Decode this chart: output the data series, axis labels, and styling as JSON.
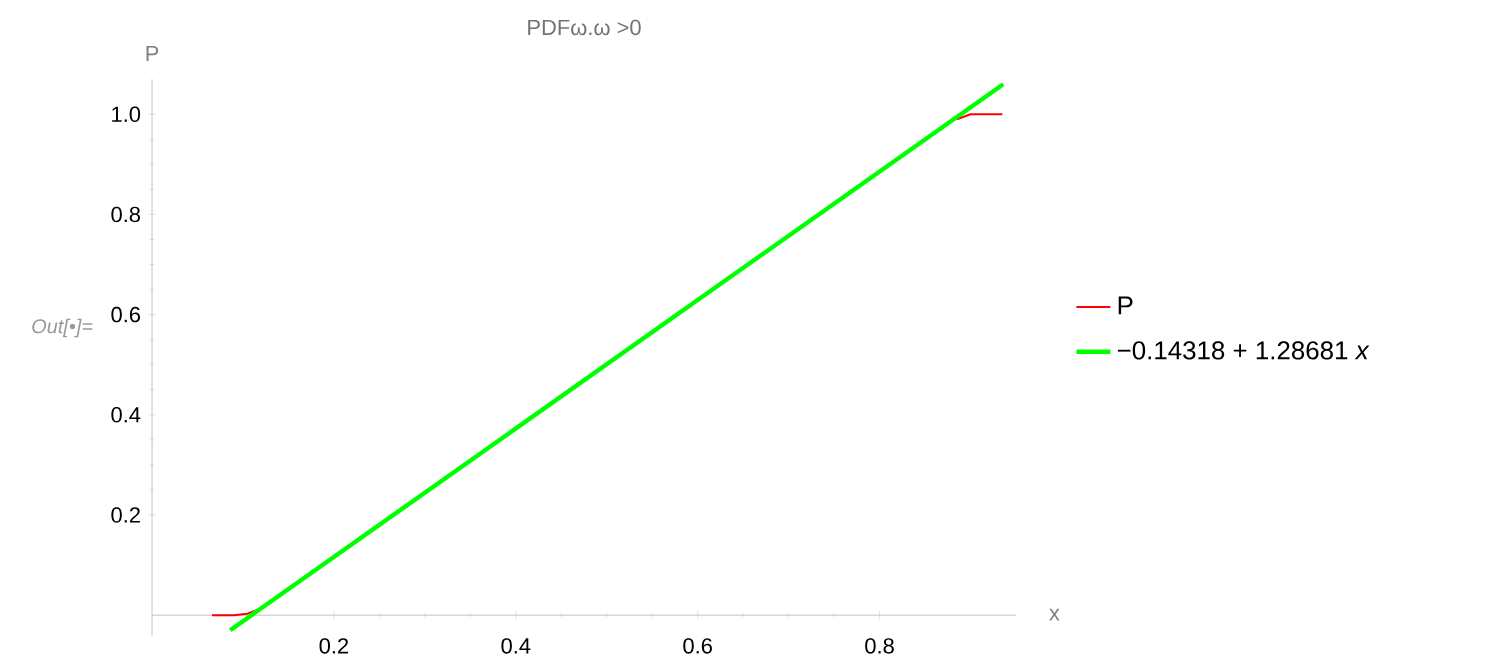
{
  "chart_data": {
    "type": "line",
    "title": "PDFω.ω >0",
    "xlabel": "x",
    "ylabel": "P",
    "annotations": [
      "Out[•]="
    ],
    "xlim": [
      0,
      0.95
    ],
    "ylim": [
      -0.04,
      1.07
    ],
    "xticks": [
      0.2,
      0.4,
      0.6,
      0.8
    ],
    "yticks": [
      0.2,
      0.4,
      0.6,
      0.8,
      {
        "value": 1,
        "label": "1.0"
      }
    ],
    "legend": "right",
    "series": [
      {
        "name": "P",
        "color": "#ff0000",
        "x": [
          0.066,
          0.09,
          0.105,
          0.115,
          0.5,
          0.885,
          0.9,
          0.935
        ],
        "values": [
          0,
          0,
          0.003,
          0.01,
          null,
          0.99,
          1.0,
          1.0
        ]
      },
      {
        "name": "−0.14318 + 1.28681 *x*",
        "color": "#00ff00",
        "x": [
          0.086,
          0.936
        ],
        "values": [
          -0.03,
          1.06
        ]
      }
    ]
  }
}
